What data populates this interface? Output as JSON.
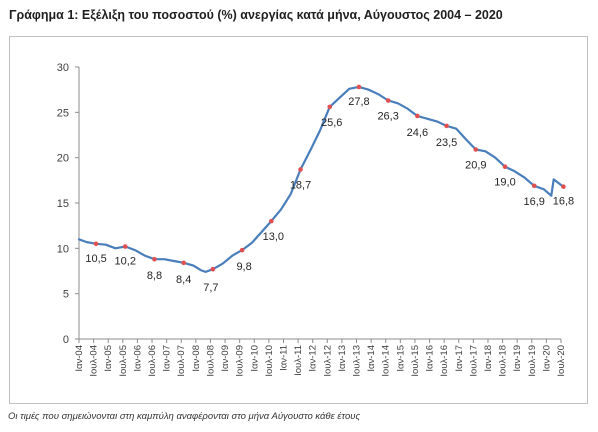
{
  "title": "Γράφημα 1: Εξέλιξη του ποσοστού (%) ανεργίας κατά μήνα, Αύγουστος 2004 – 2020",
  "note": "Οι τιμές που σημειώνονται στη καμπύλη αναφέρονται στο μήνα Αύγουστο κάθε έτους",
  "chart_data": {
    "type": "line",
    "title": "Γράφημα 1: Εξέλιξη του ποσοστού (%) ανεργίας κατά μήνα, Αύγουστος 2004 – 2020",
    "xlabel": "",
    "ylabel": "",
    "ylim": [
      0,
      30
    ],
    "yticks": [
      0,
      5,
      10,
      15,
      20,
      25,
      30
    ],
    "grid": false,
    "legend": "none",
    "line_color": "#4a7ebb",
    "marker_color": "#e05050",
    "x_tick_labels": [
      "Ιαν-04",
      "Ιουλ-04",
      "Ιαν-05",
      "Ιουλ-05",
      "Ιαν-06",
      "Ιουλ-06",
      "Ιαν-07",
      "Ιουλ-07",
      "Ιαν-08",
      "Ιουλ-08",
      "Ιαν-09",
      "Ιουλ-09",
      "Ιαν-10",
      "Ιουλ-10",
      "Ιαν-11",
      "Ιουλ-11",
      "Ιαν-12",
      "Ιουλ-12",
      "Ιαν-13",
      "Ιουλ-13",
      "Ιαν-14",
      "Ιουλ-14",
      "Ιαν-15",
      "Ιουλ-15",
      "Ιαν-16",
      "Ιουλ-16",
      "Ιαν-17",
      "Ιουλ-17",
      "Ιαν-18",
      "Ιουλ-18",
      "Ιαν-19",
      "Ιουλ-19",
      "Ιαν-20",
      "Ιουλ-20"
    ],
    "series": [
      {
        "name": "",
        "points": [
          {
            "x": "2004-01",
            "y": 11.0
          },
          {
            "x": "2004-04",
            "y": 10.7
          },
          {
            "x": "2004-08",
            "y": 10.5
          },
          {
            "x": "2004-12",
            "y": 10.4
          },
          {
            "x": "2005-04",
            "y": 10.0
          },
          {
            "x": "2005-08",
            "y": 10.2
          },
          {
            "x": "2005-12",
            "y": 9.8
          },
          {
            "x": "2006-04",
            "y": 9.2
          },
          {
            "x": "2006-08",
            "y": 8.8
          },
          {
            "x": "2006-12",
            "y": 8.8
          },
          {
            "x": "2007-04",
            "y": 8.6
          },
          {
            "x": "2007-08",
            "y": 8.4
          },
          {
            "x": "2007-12",
            "y": 8.1
          },
          {
            "x": "2008-03",
            "y": 7.6
          },
          {
            "x": "2008-05",
            "y": 7.4
          },
          {
            "x": "2008-08",
            "y": 7.7
          },
          {
            "x": "2008-12",
            "y": 8.3
          },
          {
            "x": "2009-04",
            "y": 9.2
          },
          {
            "x": "2009-08",
            "y": 9.8
          },
          {
            "x": "2009-12",
            "y": 10.6
          },
          {
            "x": "2010-04",
            "y": 11.8
          },
          {
            "x": "2010-08",
            "y": 13.0
          },
          {
            "x": "2010-12",
            "y": 14.3
          },
          {
            "x": "2011-04",
            "y": 16.0
          },
          {
            "x": "2011-08",
            "y": 18.7
          },
          {
            "x": "2011-12",
            "y": 20.8
          },
          {
            "x": "2012-04",
            "y": 23.0
          },
          {
            "x": "2012-08",
            "y": 25.6
          },
          {
            "x": "2012-12",
            "y": 26.6
          },
          {
            "x": "2013-04",
            "y": 27.6
          },
          {
            "x": "2013-08",
            "y": 27.8
          },
          {
            "x": "2013-12",
            "y": 27.5
          },
          {
            "x": "2014-04",
            "y": 27.0
          },
          {
            "x": "2014-08",
            "y": 26.3
          },
          {
            "x": "2014-12",
            "y": 26.0
          },
          {
            "x": "2015-04",
            "y": 25.4
          },
          {
            "x": "2015-08",
            "y": 24.6
          },
          {
            "x": "2015-12",
            "y": 24.3
          },
          {
            "x": "2016-04",
            "y": 24.0
          },
          {
            "x": "2016-08",
            "y": 23.5
          },
          {
            "x": "2016-12",
            "y": 23.2
          },
          {
            "x": "2017-04",
            "y": 22.0
          },
          {
            "x": "2017-08",
            "y": 20.9
          },
          {
            "x": "2017-12",
            "y": 20.7
          },
          {
            "x": "2018-04",
            "y": 20.0
          },
          {
            "x": "2018-08",
            "y": 19.0
          },
          {
            "x": "2018-12",
            "y": 18.5
          },
          {
            "x": "2019-04",
            "y": 17.8
          },
          {
            "x": "2019-08",
            "y": 16.9
          },
          {
            "x": "2019-12",
            "y": 16.5
          },
          {
            "x": "2020-03",
            "y": 15.8
          },
          {
            "x": "2020-04",
            "y": 17.6
          },
          {
            "x": "2020-06",
            "y": 17.2
          },
          {
            "x": "2020-08",
            "y": 16.8
          }
        ]
      }
    ],
    "data_labels": [
      {
        "x": "2004-08",
        "y": 10.5,
        "text": "10,5"
      },
      {
        "x": "2005-08",
        "y": 10.2,
        "text": "10,2"
      },
      {
        "x": "2006-08",
        "y": 8.8,
        "text": "8,8"
      },
      {
        "x": "2007-08",
        "y": 8.4,
        "text": "8,4"
      },
      {
        "x": "2008-08",
        "y": 7.7,
        "text": "7,7"
      },
      {
        "x": "2009-08",
        "y": 9.8,
        "text": "9,8"
      },
      {
        "x": "2010-08",
        "y": 13.0,
        "text": "13,0"
      },
      {
        "x": "2011-08",
        "y": 18.7,
        "text": "18,7"
      },
      {
        "x": "2012-08",
        "y": 25.6,
        "text": "25,6"
      },
      {
        "x": "2013-08",
        "y": 27.8,
        "text": "27,8"
      },
      {
        "x": "2014-08",
        "y": 26.3,
        "text": "26,3"
      },
      {
        "x": "2015-08",
        "y": 24.6,
        "text": "24,6"
      },
      {
        "x": "2016-08",
        "y": 23.5,
        "text": "23,5"
      },
      {
        "x": "2017-08",
        "y": 20.9,
        "text": "20,9"
      },
      {
        "x": "2018-08",
        "y": 19.0,
        "text": "19,0"
      },
      {
        "x": "2019-08",
        "y": 16.9,
        "text": "16,9"
      },
      {
        "x": "2020-08",
        "y": 16.8,
        "text": "16,8"
      }
    ]
  }
}
